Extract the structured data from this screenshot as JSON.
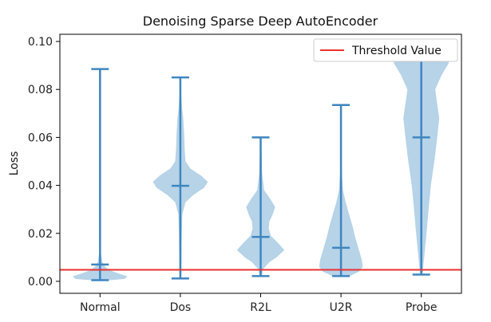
{
  "chart_data": {
    "type": "violin",
    "title": "Denoising Sparse Deep AutoEncoder",
    "xlabel": "",
    "ylabel": "Loss",
    "ylim": [
      -0.005,
      0.103
    ],
    "yticks": [
      "0.00",
      "0.02",
      "0.04",
      "0.06",
      "0.08",
      "0.10"
    ],
    "ytick_values": [
      0.0,
      0.02,
      0.04,
      0.06,
      0.08,
      0.1
    ],
    "categories": [
      "Normal",
      "Dos",
      "R2L",
      "U2R",
      "Probe"
    ],
    "grid": false,
    "legend": {
      "position": "top-right",
      "entries": [
        {
          "label": "Threshold Value",
          "color": "#e8322f"
        }
      ]
    },
    "threshold": 0.0048,
    "colors": {
      "violin": "#9ec4e0",
      "lines": "#3f86bf",
      "threshold": "#e8322f"
    },
    "violins": [
      {
        "name": "Normal",
        "min": 0.0005,
        "max": 0.0885,
        "median": 0.007,
        "density": [
          [
            0.0005,
            0.4
          ],
          [
            0.001,
            0.85
          ],
          [
            0.002,
            0.95
          ],
          [
            0.003,
            0.7
          ],
          [
            0.0045,
            0.35
          ],
          [
            0.006,
            0.18
          ],
          [
            0.008,
            0.08
          ],
          [
            0.011,
            0.04
          ],
          [
            0.015,
            0.02
          ],
          [
            0.03,
            0.01
          ],
          [
            0.06,
            0.005
          ],
          [
            0.0885,
            0.003
          ]
        ]
      },
      {
        "name": "Dos",
        "min": 0.0012,
        "max": 0.085,
        "median": 0.0398,
        "density": [
          [
            0.0012,
            0.03
          ],
          [
            0.01,
            0.04
          ],
          [
            0.02,
            0.05
          ],
          [
            0.028,
            0.07
          ],
          [
            0.033,
            0.18
          ],
          [
            0.036,
            0.45
          ],
          [
            0.039,
            0.82
          ],
          [
            0.0415,
            0.95
          ],
          [
            0.044,
            0.72
          ],
          [
            0.047,
            0.35
          ],
          [
            0.05,
            0.18
          ],
          [
            0.055,
            0.15
          ],
          [
            0.062,
            0.13
          ],
          [
            0.068,
            0.1
          ],
          [
            0.072,
            0.06
          ],
          [
            0.078,
            0.03
          ],
          [
            0.085,
            0.01
          ]
        ]
      },
      {
        "name": "R2L",
        "min": 0.0022,
        "max": 0.06,
        "median": 0.0185,
        "density": [
          [
            0.0022,
            0.04
          ],
          [
            0.005,
            0.08
          ],
          [
            0.008,
            0.3
          ],
          [
            0.01,
            0.55
          ],
          [
            0.013,
            0.82
          ],
          [
            0.016,
            0.6
          ],
          [
            0.019,
            0.35
          ],
          [
            0.022,
            0.28
          ],
          [
            0.025,
            0.3
          ],
          [
            0.028,
            0.42
          ],
          [
            0.031,
            0.5
          ],
          [
            0.034,
            0.35
          ],
          [
            0.038,
            0.12
          ],
          [
            0.045,
            0.05
          ],
          [
            0.06,
            0.02
          ]
        ]
      },
      {
        "name": "U2R",
        "min": 0.0022,
        "max": 0.0735,
        "median": 0.014,
        "density": [
          [
            0.0022,
            0.3
          ],
          [
            0.004,
            0.62
          ],
          [
            0.006,
            0.75
          ],
          [
            0.009,
            0.72
          ],
          [
            0.013,
            0.62
          ],
          [
            0.018,
            0.5
          ],
          [
            0.023,
            0.4
          ],
          [
            0.028,
            0.28
          ],
          [
            0.033,
            0.16
          ],
          [
            0.038,
            0.07
          ],
          [
            0.045,
            0.03
          ],
          [
            0.06,
            0.01
          ],
          [
            0.0735,
            0.005
          ]
        ]
      },
      {
        "name": "Probe",
        "min": 0.0028,
        "max": 0.1,
        "median": 0.06,
        "density": [
          [
            0.0028,
            0.04
          ],
          [
            0.01,
            0.1
          ],
          [
            0.02,
            0.18
          ],
          [
            0.03,
            0.25
          ],
          [
            0.04,
            0.33
          ],
          [
            0.05,
            0.45
          ],
          [
            0.06,
            0.55
          ],
          [
            0.068,
            0.62
          ],
          [
            0.074,
            0.55
          ],
          [
            0.08,
            0.48
          ],
          [
            0.086,
            0.7
          ],
          [
            0.091,
            0.95
          ],
          [
            0.096,
            0.9
          ],
          [
            0.1,
            0.82
          ]
        ]
      }
    ]
  }
}
